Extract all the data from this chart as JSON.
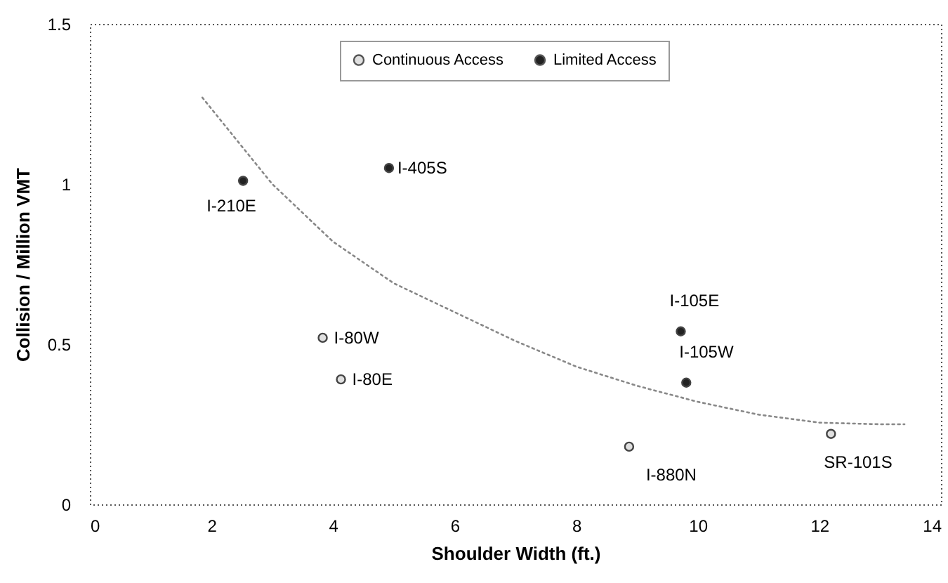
{
  "chart_data": {
    "type": "scatter",
    "xlabel": "Shoulder Width (ft.)",
    "ylabel": "Collision / Million VMT",
    "xlim": [
      0,
      14
    ],
    "xticks": [
      0,
      2,
      4,
      6,
      8,
      10,
      12,
      14
    ],
    "ylim": [
      0,
      1.5
    ],
    "yticks": [
      0,
      0.5,
      1,
      1.5
    ],
    "grid": false,
    "legend": "top",
    "marker": "circle",
    "line_style": "dotted",
    "series": [
      {
        "name": "Continuous Access",
        "color": "#e0e0e0",
        "x": [
          3.83,
          4.13,
          8.87,
          12.19
        ],
        "values": [
          0.52,
          0.39,
          0.18,
          0.22
        ]
      },
      {
        "name": "Limited Access",
        "color": "#222222",
        "x": [
          2.52,
          4.92,
          9.72,
          9.81
        ],
        "values": [
          1.01,
          1.05,
          0.54,
          0.38
        ]
      },
      {
        "type": "line",
        "marker": "none",
        "color": "#888888",
        "x": [
          1.85,
          3,
          4,
          5,
          6,
          7,
          8,
          9,
          10,
          11,
          12,
          13,
          13.4
        ],
        "values": [
          1.27,
          1.0,
          0.82,
          0.69,
          0.6,
          0.51,
          0.43,
          0.37,
          0.32,
          0.28,
          0.255,
          0.25,
          0.25
        ]
      }
    ],
    "annotations": [
      {
        "text": "I-80W",
        "x": 3.83,
        "y": 0.52
      },
      {
        "text": "I-80E",
        "x": 4.13,
        "y": 0.39
      },
      {
        "text": "I-880N",
        "x": 8.87,
        "y": 0.18
      },
      {
        "text": "SR-101S",
        "x": 12.19,
        "y": 0.22
      },
      {
        "text": "I-210E",
        "x": 2.52,
        "y": 1.01
      },
      {
        "text": "I-405S",
        "x": 4.92,
        "y": 1.05
      },
      {
        "text": "I-105E",
        "x": 9.72,
        "y": 0.54
      },
      {
        "text": "I-105W",
        "x": 9.81,
        "y": 0.38
      }
    ]
  }
}
